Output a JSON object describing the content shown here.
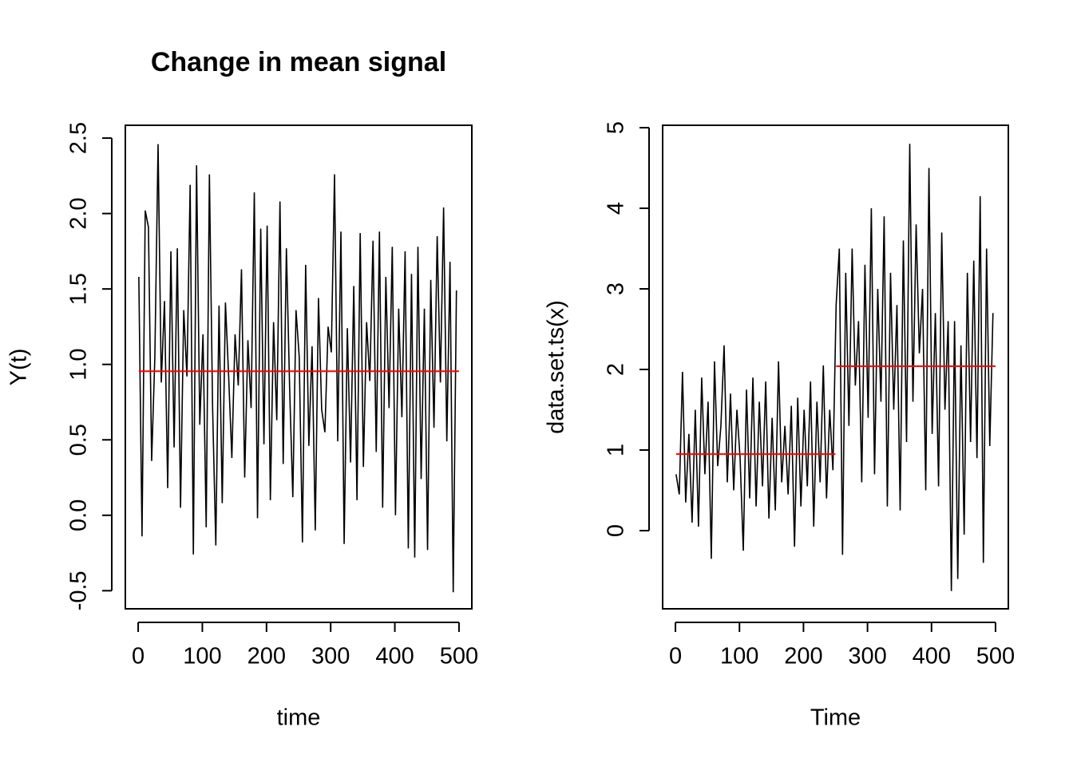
{
  "chart_data": [
    {
      "type": "line",
      "title": "Change in mean signal",
      "xlabel": "time",
      "ylabel": "Y(t)",
      "x": [
        1,
        6,
        11,
        16,
        21,
        26,
        31,
        36,
        41,
        46,
        51,
        56,
        61,
        66,
        71,
        76,
        81,
        86,
        91,
        96,
        101,
        106,
        111,
        116,
        121,
        126,
        131,
        136,
        141,
        146,
        151,
        156,
        161,
        166,
        171,
        176,
        181,
        186,
        191,
        196,
        201,
        206,
        211,
        216,
        221,
        226,
        231,
        236,
        241,
        246,
        251,
        256,
        261,
        266,
        271,
        276,
        281,
        286,
        291,
        296,
        301,
        306,
        311,
        316,
        321,
        326,
        331,
        336,
        341,
        346,
        351,
        356,
        361,
        366,
        371,
        376,
        381,
        386,
        391,
        396,
        401,
        406,
        411,
        416,
        421,
        426,
        431,
        436,
        441,
        446,
        451,
        456,
        461,
        466,
        471,
        476,
        481,
        486,
        491,
        496
      ],
      "series": [
        {
          "color": "#000000",
          "values": [
            1.58,
            -0.14,
            2.02,
            1.91,
            0.36,
            1.05,
            2.46,
            0.88,
            1.42,
            0.18,
            1.75,
            0.45,
            1.77,
            0.05,
            1.36,
            0.92,
            2.19,
            -0.26,
            2.32,
            0.6,
            1.2,
            -0.08,
            2.26,
            0.71,
            -0.2,
            1.39,
            0.08,
            1.41,
            0.92,
            0.38,
            1.2,
            0.86,
            1.63,
            0.25,
            1.16,
            0.71,
            2.14,
            -0.02,
            1.9,
            0.47,
            1.92,
            0.1,
            1.28,
            0.63,
            2.08,
            0.34,
            1.77,
            0.85,
            0.12,
            1.36,
            1.05,
            -0.18,
            1.66,
            0.46,
            1.12,
            -0.1,
            1.44,
            0.7,
            0.55,
            1.25,
            1.08,
            2.26,
            0.49,
            1.88,
            -0.19,
            1.24,
            0.35,
            1.52,
            0.1,
            1.87,
            0.32,
            1.28,
            0.89,
            1.82,
            0.42,
            1.88,
            0.05,
            1.58,
            0.71,
            1.78,
            0.0,
            1.37,
            0.65,
            1.75,
            -0.22,
            1.6,
            -0.28,
            1.78,
            0.24,
            1.37,
            -0.23,
            1.56,
            0.58,
            1.85,
            0.88,
            2.04,
            0.49,
            1.68,
            -0.51,
            1.49
          ]
        }
      ],
      "mean_segments": [
        {
          "color": "#ff0000",
          "x": [
            1,
            500
          ],
          "values": [
            0.955,
            0.955
          ]
        }
      ],
      "xlim": [
        -20,
        520
      ],
      "xticks": [
        0,
        100,
        200,
        300,
        400,
        500
      ],
      "ylim": [
        -0.62,
        2.585
      ],
      "yticks": [
        -0.5,
        {
          "value": 0,
          "label": "0.0"
        },
        0.5,
        {
          "value": 1,
          "label": "1.0"
        },
        1.5,
        {
          "value": 2,
          "label": "2.0"
        },
        2.5
      ]
    },
    {
      "type": "line",
      "xlabel": "Time",
      "ylabel": "data.set.ts(x)",
      "x": [
        1,
        6,
        11,
        16,
        21,
        26,
        31,
        36,
        41,
        46,
        51,
        56,
        61,
        66,
        71,
        76,
        81,
        86,
        91,
        96,
        101,
        106,
        111,
        116,
        121,
        126,
        131,
        136,
        141,
        146,
        151,
        156,
        161,
        166,
        171,
        176,
        181,
        186,
        191,
        196,
        201,
        206,
        211,
        216,
        221,
        226,
        231,
        236,
        241,
        246,
        251,
        256,
        261,
        266,
        271,
        276,
        281,
        286,
        291,
        296,
        301,
        306,
        311,
        316,
        321,
        326,
        331,
        336,
        341,
        346,
        351,
        356,
        361,
        366,
        371,
        376,
        381,
        386,
        391,
        396,
        401,
        406,
        411,
        416,
        421,
        426,
        431,
        436,
        441,
        446,
        451,
        456,
        461,
        466,
        471,
        476,
        481,
        486,
        491,
        496
      ],
      "series": [
        {
          "color": "#000000",
          "values": [
            0.7,
            0.45,
            1.97,
            0.35,
            1.2,
            0.1,
            1.5,
            0.05,
            1.9,
            0.7,
            1.6,
            -0.35,
            2.1,
            0.8,
            1.3,
            2.3,
            0.6,
            1.7,
            0.5,
            1.5,
            0.9,
            -0.25,
            1.75,
            0.4,
            1.9,
            0.3,
            1.6,
            0.55,
            1.85,
            0.15,
            1.4,
            0.25,
            2.1,
            0.6,
            1.3,
            0.45,
            1.55,
            -0.2,
            1.65,
            0.3,
            1.5,
            0.55,
            1.85,
            0.05,
            1.6,
            0.6,
            2.05,
            0.4,
            1.5,
            0.75,
            2.8,
            3.5,
            -0.3,
            3.2,
            1.3,
            3.5,
            1.8,
            2.6,
            0.6,
            3.3,
            1.4,
            4.0,
            0.7,
            3.0,
            1.6,
            3.9,
            0.3,
            3.2,
            1.5,
            2.8,
            0.25,
            3.6,
            1.1,
            4.8,
            1.6,
            3.8,
            2.2,
            3.0,
            0.5,
            4.5,
            1.2,
            2.7,
            0.55,
            3.7,
            1.5,
            2.6,
            -0.75,
            2.6,
            -0.6,
            2.3,
            -0.05,
            3.2,
            1.1,
            3.35,
            0.9,
            4.15,
            -0.4,
            3.5,
            1.05,
            2.7
          ]
        }
      ],
      "mean_segments": [
        {
          "color": "#ff0000",
          "x": [
            1,
            250
          ],
          "values": [
            0.95,
            0.95
          ]
        },
        {
          "color": "#ff0000",
          "x": [
            251,
            500
          ],
          "values": [
            2.04,
            2.04
          ]
        }
      ],
      "xlim": [
        -20,
        520
      ],
      "xticks": [
        0,
        100,
        200,
        300,
        400,
        500
      ],
      "ylim": [
        -0.97,
        5.03
      ],
      "yticks": [
        0,
        1,
        2,
        3,
        4,
        5
      ]
    }
  ]
}
